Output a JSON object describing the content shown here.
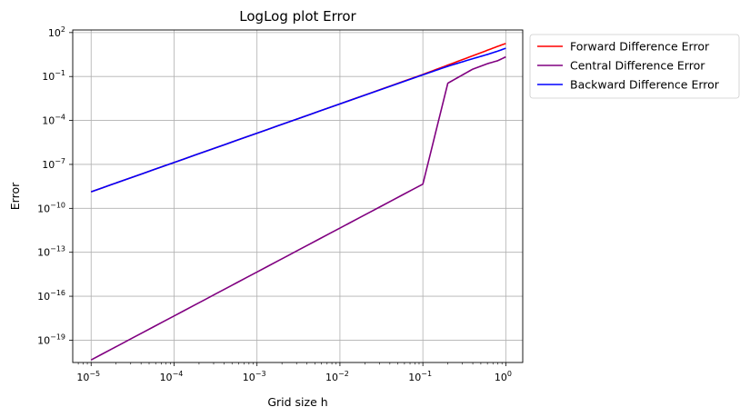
{
  "chart_data": {
    "type": "line",
    "title": "LogLog plot Error",
    "xlabel": "Grid size h",
    "ylabel": "Error",
    "xscale": "log",
    "yscale": "log",
    "xlim": [
      6e-06,
      1.6
    ],
    "ylim": [
      3e-21,
      150
    ],
    "grid": true,
    "legend_position": "outside-top-right",
    "x_ticks": [
      {
        "value": 1e-05,
        "base": "10",
        "exp": "−5"
      },
      {
        "value": 0.0001,
        "base": "10",
        "exp": "−4"
      },
      {
        "value": 0.001,
        "base": "10",
        "exp": "−3"
      },
      {
        "value": 0.01,
        "base": "10",
        "exp": "−2"
      },
      {
        "value": 0.1,
        "base": "10",
        "exp": "−1"
      },
      {
        "value": 1,
        "base": "10",
        "exp": "0"
      }
    ],
    "y_ticks": [
      {
        "value": 1e-19,
        "base": "10",
        "exp": "−19"
      },
      {
        "value": 1e-16,
        "base": "10",
        "exp": "−16"
      },
      {
        "value": 1e-13,
        "base": "10",
        "exp": "−13"
      },
      {
        "value": 1e-10,
        "base": "10",
        "exp": "−10"
      },
      {
        "value": 1e-07,
        "base": "10",
        "exp": "−7"
      },
      {
        "value": 0.0001,
        "base": "10",
        "exp": "−4"
      },
      {
        "value": 0.1,
        "base": "10",
        "exp": "−1"
      },
      {
        "value": 100,
        "base": "10",
        "exp": "2"
      }
    ],
    "series": [
      {
        "name": "Forward Difference Error",
        "color": "#ff0000",
        "x": [
          1e-05,
          0.0001,
          0.001,
          0.01,
          0.1,
          0.2,
          0.4,
          0.6,
          0.8,
          1.0
        ],
        "y": [
          1.35e-09,
          1.35e-07,
          1.35e-05,
          0.00135,
          0.138,
          0.6,
          2.6,
          6.2,
          11.5,
          18.0
        ]
      },
      {
        "name": "Central Difference Error",
        "color": "#800080",
        "x": [
          1e-05,
          0.0001,
          0.001,
          0.01,
          0.1,
          0.2,
          0.4,
          0.6,
          0.8,
          1.0
        ],
        "y": [
          4.5e-21,
          4.5e-18,
          4.5e-15,
          4.5e-12,
          4.5e-09,
          0.035,
          0.32,
          0.75,
          1.2,
          2.2
        ]
      },
      {
        "name": "Backward Difference Error",
        "color": "#0000ff",
        "x": [
          1e-05,
          0.0001,
          0.001,
          0.01,
          0.1,
          0.2,
          0.4,
          0.6,
          0.8,
          1.0
        ],
        "y": [
          1.35e-09,
          1.35e-07,
          1.35e-05,
          0.00135,
          0.13,
          0.5,
          1.65,
          3.2,
          5.4,
          8.5
        ]
      }
    ]
  }
}
